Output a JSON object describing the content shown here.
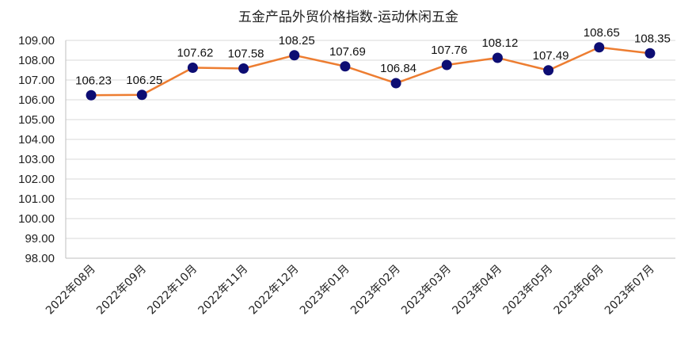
{
  "chart_data": {
    "type": "line",
    "title": "五金产品外贸价格指数-运动休闲五金",
    "categories": [
      "2022年08月",
      "2022年09月",
      "2022年10月",
      "2022年11月",
      "2022年12月",
      "2023年01月",
      "2023年02月",
      "2023年03月",
      "2023年04月",
      "2023年05月",
      "2023年06月",
      "2023年07月"
    ],
    "values": [
      106.23,
      106.25,
      107.62,
      107.58,
      108.25,
      107.69,
      106.84,
      107.76,
      108.12,
      107.49,
      108.65,
      108.35
    ],
    "data_labels": [
      "106.23",
      "106.25",
      "107.62",
      "107.58",
      "108.25",
      "107.69",
      "106.84",
      "107.76",
      "108.12",
      "107.49",
      "108.65",
      "108.35"
    ],
    "ylim": [
      98,
      109
    ],
    "yticks": [
      "98.00",
      "99.00",
      "100.00",
      "101.00",
      "102.00",
      "103.00",
      "104.00",
      "105.00",
      "106.00",
      "107.00",
      "108.00",
      "109.00"
    ],
    "grid": true,
    "line_color": "#ED7D31",
    "marker_color": "#0D0D73"
  }
}
